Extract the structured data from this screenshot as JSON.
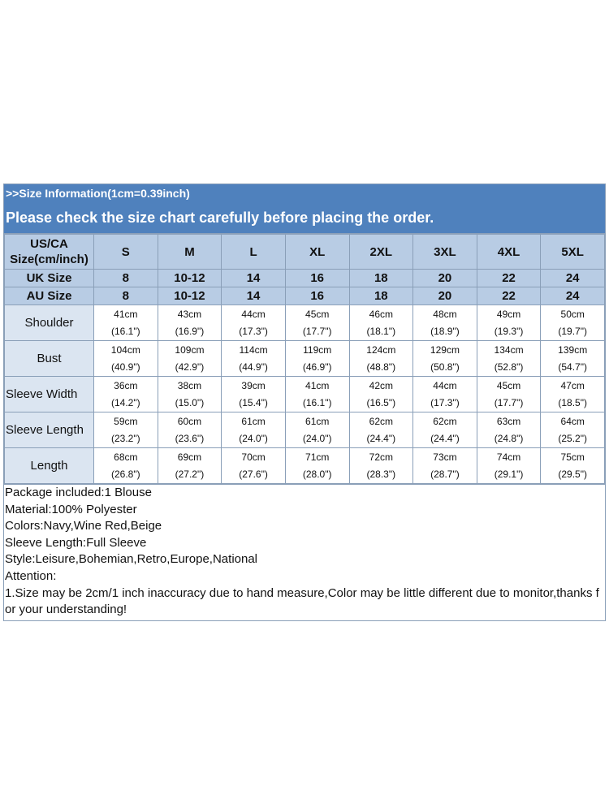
{
  "header": {
    "info": ">>Size Information(1cm=0.39inch)",
    "notice": "Please check the size chart carefully before placing the order."
  },
  "table": {
    "us_ca_label": [
      "US/CA",
      "Size(cm/inch)"
    ],
    "sizes": [
      "S",
      "M",
      "L",
      "XL",
      "2XL",
      "3XL",
      "4XL",
      "5XL"
    ],
    "uk": {
      "label": "UK Size",
      "values": [
        "8",
        "10-12",
        "14",
        "16",
        "18",
        "20",
        "22",
        "24"
      ]
    },
    "au": {
      "label": "AU Size",
      "values": [
        "8",
        "10-12",
        "14",
        "16",
        "18",
        "20",
        "22",
        "24"
      ]
    },
    "rows": [
      {
        "label": "Shoulder",
        "align": "center",
        "cm": [
          "41cm",
          "43cm",
          "44cm",
          "45cm",
          "46cm",
          "48cm",
          "49cm",
          "50cm"
        ],
        "inch": [
          "(16.1\")",
          "(16.9\")",
          "(17.3\")",
          "(17.7\")",
          "(18.1\")",
          "(18.9\")",
          "(19.3\")",
          "(19.7\")"
        ]
      },
      {
        "label": "Bust",
        "align": "center",
        "cm": [
          "104cm",
          "109cm",
          "114cm",
          "119cm",
          "124cm",
          "129cm",
          "134cm",
          "139cm"
        ],
        "inch": [
          "(40.9\")",
          "(42.9\")",
          "(44.9\")",
          "(46.9\")",
          "(48.8\")",
          "(50.8\")",
          "(52.8\")",
          "(54.7\")"
        ]
      },
      {
        "label": "Sleeve Width",
        "align": "left",
        "cm": [
          "36cm",
          "38cm",
          "39cm",
          "41cm",
          "42cm",
          "44cm",
          "45cm",
          "47cm"
        ],
        "inch": [
          "(14.2\")",
          "(15.0\")",
          "(15.4\")",
          "(16.1\")",
          "(16.5\")",
          "(17.3\")",
          "(17.7\")",
          "(18.5\")"
        ]
      },
      {
        "label": "Sleeve Length",
        "align": "left",
        "cm": [
          "59cm",
          "60cm",
          "61cm",
          "61cm",
          "62cm",
          "62cm",
          "63cm",
          "64cm"
        ],
        "inch": [
          "(23.2\")",
          "(23.6\")",
          "(24.0\")",
          "(24.0\")",
          "(24.4\")",
          "(24.4\")",
          "(24.8\")",
          "(25.2\")"
        ]
      },
      {
        "label": "Length",
        "align": "center",
        "cm": [
          "68cm",
          "69cm",
          "70cm",
          "71cm",
          "72cm",
          "73cm",
          "74cm",
          "75cm"
        ],
        "inch": [
          "(26.8\")",
          "(27.2\")",
          "(27.6\")",
          "(28.0\")",
          "(28.3\")",
          "(28.7\")",
          "(29.1\")",
          "(29.5\")"
        ]
      }
    ]
  },
  "notes": {
    "package": "Package included:1 Blouse",
    "material": "Material:100% Polyester",
    "colors": "Colors:Navy,Wine Red,Beige",
    "sleeve": "Sleeve Length:Full Sleeve",
    "style": "Style:Leisure,Bohemian,Retro,Europe,National",
    "attention": "Attention:",
    "attention_1": "1.Size may be 2cm/1 inch inaccuracy due to hand measure,Color may be little different due to monitor,thanks for your understanding!"
  },
  "colors": {
    "banner": "#4f81bd",
    "header_cell": "#b8cce4",
    "label_cell": "#dbe5f1",
    "grid": "#8a9fb8"
  }
}
